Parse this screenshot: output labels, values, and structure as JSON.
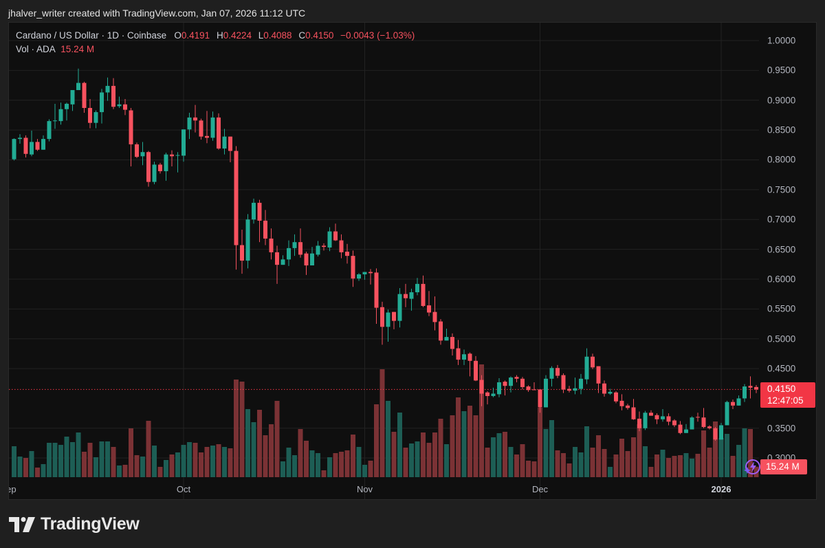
{
  "header": {
    "attribution": "jhalver_writer created with TradingView.com, Jan 07, 2026 11:12 UTC"
  },
  "legend": {
    "symbol": "Cardano / US Dollar · 1D · Coinbase",
    "o_key": "O",
    "o": "0.4191",
    "h_key": "H",
    "h": "0.4224",
    "l_key": "L",
    "l": "0.4088",
    "c_key": "C",
    "c": "0.4150",
    "change": "−0.0043 (−1.03%)",
    "vol_label": "Vol · ADA",
    "vol_value": "15.24 M"
  },
  "price_box": {
    "price": "0.4150",
    "countdown": "12:47:05"
  },
  "vol_box": {
    "value": "15.24 M"
  },
  "logo": {
    "text": "TradingView"
  },
  "colors": {
    "up": "#22ab94",
    "down": "#f7525f",
    "vol_up": "#1d5e55",
    "vol_down": "#7b3235",
    "grid": "#222222",
    "price_line": "#f23645"
  },
  "chart_data": {
    "type": "candlestick",
    "title": "Cardano / US Dollar · 1D · Coinbase",
    "interval": "1D",
    "first_date": "2025-09-02",
    "last_date": "2026-01-07",
    "ylim": [
      0.28,
      1.03
    ],
    "y_ticks": [
      "1.0000",
      "0.9500",
      "0.9000",
      "0.8500",
      "0.8000",
      "0.7500",
      "0.7000",
      "0.6500",
      "0.6000",
      "0.5500",
      "0.5000",
      "0.4500",
      "0.3500",
      "0.3000"
    ],
    "x_ticks": [
      {
        "label": "Sep",
        "at_index": -1,
        "bold": false
      },
      {
        "label": "Oct",
        "at_index": 29,
        "bold": false
      },
      {
        "label": "Nov",
        "at_index": 60,
        "bold": false
      },
      {
        "label": "Dec",
        "at_index": 90,
        "bold": false
      },
      {
        "label": "2026",
        "at_index": 121,
        "bold": true
      }
    ],
    "last_price": 0.415,
    "ohlc": [
      [
        0.801,
        0.836,
        0.799,
        0.835
      ],
      [
        0.835,
        0.843,
        0.827,
        0.837
      ],
      [
        0.837,
        0.841,
        0.804,
        0.81
      ],
      [
        0.809,
        0.849,
        0.806,
        0.83
      ],
      [
        0.83,
        0.835,
        0.815,
        0.817
      ],
      [
        0.817,
        0.841,
        0.817,
        0.835
      ],
      [
        0.835,
        0.868,
        0.831,
        0.865
      ],
      [
        0.865,
        0.894,
        0.852,
        0.866
      ],
      [
        0.865,
        0.896,
        0.859,
        0.885
      ],
      [
        0.885,
        0.896,
        0.866,
        0.894
      ],
      [
        0.893,
        0.917,
        0.882,
        0.917
      ],
      [
        0.917,
        0.953,
        0.917,
        0.929
      ],
      [
        0.929,
        0.931,
        0.879,
        0.887
      ],
      [
        0.887,
        0.902,
        0.853,
        0.862
      ],
      [
        0.862,
        0.883,
        0.853,
        0.88
      ],
      [
        0.88,
        0.919,
        0.861,
        0.913
      ],
      [
        0.913,
        0.938,
        0.899,
        0.924
      ],
      [
        0.924,
        0.937,
        0.885,
        0.889
      ],
      [
        0.89,
        0.906,
        0.887,
        0.893
      ],
      [
        0.893,
        0.902,
        0.875,
        0.884
      ],
      [
        0.883,
        0.887,
        0.789,
        0.826
      ],
      [
        0.826,
        0.829,
        0.803,
        0.805
      ],
      [
        0.806,
        0.83,
        0.791,
        0.813
      ],
      [
        0.813,
        0.815,
        0.755,
        0.763
      ],
      [
        0.763,
        0.797,
        0.759,
        0.792
      ],
      [
        0.792,
        0.795,
        0.777,
        0.781
      ],
      [
        0.781,
        0.812,
        0.765,
        0.809
      ],
      [
        0.809,
        0.816,
        0.789,
        0.806
      ],
      [
        0.807,
        0.813,
        0.779,
        0.808
      ],
      [
        0.807,
        0.851,
        0.797,
        0.851
      ],
      [
        0.851,
        0.879,
        0.835,
        0.871
      ],
      [
        0.871,
        0.892,
        0.846,
        0.866
      ],
      [
        0.866,
        0.869,
        0.834,
        0.839
      ],
      [
        0.84,
        0.882,
        0.828,
        0.837
      ],
      [
        0.837,
        0.881,
        0.832,
        0.871
      ],
      [
        0.871,
        0.878,
        0.817,
        0.819
      ],
      [
        0.819,
        0.852,
        0.809,
        0.839
      ],
      [
        0.839,
        0.839,
        0.796,
        0.815
      ],
      [
        0.815,
        0.823,
        0.616,
        0.657
      ],
      [
        0.657,
        0.683,
        0.609,
        0.631
      ],
      [
        0.631,
        0.709,
        0.618,
        0.7
      ],
      [
        0.7,
        0.735,
        0.693,
        0.728
      ],
      [
        0.728,
        0.733,
        0.662,
        0.698
      ],
      [
        0.698,
        0.716,
        0.657,
        0.668
      ],
      [
        0.668,
        0.685,
        0.633,
        0.645
      ],
      [
        0.645,
        0.656,
        0.592,
        0.624
      ],
      [
        0.624,
        0.64,
        0.624,
        0.633
      ],
      [
        0.633,
        0.665,
        0.622,
        0.652
      ],
      [
        0.652,
        0.675,
        0.639,
        0.662
      ],
      [
        0.662,
        0.685,
        0.636,
        0.641
      ],
      [
        0.643,
        0.646,
        0.607,
        0.623
      ],
      [
        0.623,
        0.654,
        0.623,
        0.643
      ],
      [
        0.641,
        0.664,
        0.638,
        0.656
      ],
      [
        0.656,
        0.66,
        0.648,
        0.654
      ],
      [
        0.653,
        0.687,
        0.647,
        0.68
      ],
      [
        0.68,
        0.693,
        0.664,
        0.665
      ],
      [
        0.665,
        0.675,
        0.635,
        0.645
      ],
      [
        0.646,
        0.659,
        0.626,
        0.639
      ],
      [
        0.639,
        0.648,
        0.587,
        0.601
      ],
      [
        0.601,
        0.61,
        0.597,
        0.608
      ],
      [
        0.608,
        0.612,
        0.599,
        0.612
      ],
      [
        0.612,
        0.617,
        0.591,
        0.61
      ],
      [
        0.611,
        0.618,
        0.525,
        0.552
      ],
      [
        0.553,
        0.562,
        0.49,
        0.52
      ],
      [
        0.52,
        0.549,
        0.495,
        0.544
      ],
      [
        0.545,
        0.545,
        0.516,
        0.53
      ],
      [
        0.53,
        0.585,
        0.519,
        0.575
      ],
      [
        0.575,
        0.592,
        0.553,
        0.568
      ],
      [
        0.567,
        0.584,
        0.547,
        0.578
      ],
      [
        0.578,
        0.602,
        0.573,
        0.592
      ],
      [
        0.592,
        0.606,
        0.553,
        0.555
      ],
      [
        0.556,
        0.58,
        0.538,
        0.544
      ],
      [
        0.545,
        0.571,
        0.514,
        0.528
      ],
      [
        0.529,
        0.533,
        0.49,
        0.497
      ],
      [
        0.497,
        0.517,
        0.497,
        0.503
      ],
      [
        0.503,
        0.509,
        0.472,
        0.483
      ],
      [
        0.484,
        0.498,
        0.456,
        0.465
      ],
      [
        0.465,
        0.482,
        0.456,
        0.474
      ],
      [
        0.475,
        0.477,
        0.437,
        0.463
      ],
      [
        0.463,
        0.471,
        0.429,
        0.43
      ],
      [
        0.431,
        0.439,
        0.387,
        0.408
      ],
      [
        0.41,
        0.412,
        0.39,
        0.404
      ],
      [
        0.404,
        0.418,
        0.402,
        0.408
      ],
      [
        0.407,
        0.434,
        0.402,
        0.427
      ],
      [
        0.428,
        0.43,
        0.405,
        0.421
      ],
      [
        0.421,
        0.437,
        0.41,
        0.435
      ],
      [
        0.436,
        0.439,
        0.427,
        0.433
      ],
      [
        0.433,
        0.436,
        0.415,
        0.419
      ],
      [
        0.42,
        0.422,
        0.411,
        0.414
      ],
      [
        0.415,
        0.427,
        0.414,
        0.414
      ],
      [
        0.415,
        0.415,
        0.376,
        0.385
      ],
      [
        0.385,
        0.439,
        0.385,
        0.433
      ],
      [
        0.433,
        0.454,
        0.42,
        0.451
      ],
      [
        0.451,
        0.456,
        0.434,
        0.438
      ],
      [
        0.439,
        0.442,
        0.409,
        0.415
      ],
      [
        0.416,
        0.421,
        0.41,
        0.413
      ],
      [
        0.413,
        0.435,
        0.407,
        0.417
      ],
      [
        0.416,
        0.441,
        0.407,
        0.433
      ],
      [
        0.432,
        0.484,
        0.424,
        0.47
      ],
      [
        0.47,
        0.475,
        0.449,
        0.452
      ],
      [
        0.454,
        0.454,
        0.409,
        0.425
      ],
      [
        0.425,
        0.43,
        0.403,
        0.408
      ],
      [
        0.408,
        0.416,
        0.406,
        0.411
      ],
      [
        0.41,
        0.412,
        0.392,
        0.395
      ],
      [
        0.396,
        0.407,
        0.38,
        0.387
      ],
      [
        0.388,
        0.391,
        0.381,
        0.384
      ],
      [
        0.385,
        0.399,
        0.364,
        0.365
      ],
      [
        0.366,
        0.378,
        0.345,
        0.35
      ],
      [
        0.35,
        0.379,
        0.347,
        0.376
      ],
      [
        0.376,
        0.38,
        0.371,
        0.371
      ],
      [
        0.372,
        0.375,
        0.357,
        0.365
      ],
      [
        0.365,
        0.382,
        0.361,
        0.37
      ],
      [
        0.37,
        0.375,
        0.355,
        0.361
      ],
      [
        0.363,
        0.365,
        0.352,
        0.355
      ],
      [
        0.356,
        0.362,
        0.34,
        0.342
      ],
      [
        0.342,
        0.357,
        0.342,
        0.348
      ],
      [
        0.348,
        0.37,
        0.348,
        0.368
      ],
      [
        0.369,
        0.376,
        0.361,
        0.368
      ],
      [
        0.368,
        0.384,
        0.35,
        0.352
      ],
      [
        0.353,
        0.355,
        0.348,
        0.35
      ],
      [
        0.35,
        0.352,
        0.329,
        0.331
      ],
      [
        0.331,
        0.359,
        0.331,
        0.355
      ],
      [
        0.355,
        0.396,
        0.355,
        0.394
      ],
      [
        0.394,
        0.398,
        0.382,
        0.388
      ],
      [
        0.388,
        0.405,
        0.388,
        0.4
      ],
      [
        0.4,
        0.424,
        0.394,
        0.42
      ],
      [
        0.421,
        0.437,
        0.4,
        0.418
      ],
      [
        0.4191,
        0.4224,
        0.4088,
        0.415
      ]
    ],
    "volume_unit": "M ADA (approx.)",
    "volume": [
      45,
      30,
      28,
      38,
      14,
      19,
      50,
      50,
      47,
      59,
      51,
      65,
      37,
      50,
      29,
      52,
      52,
      44,
      17,
      18,
      71,
      32,
      30,
      82,
      46,
      15,
      25,
      33,
      36,
      47,
      51,
      50,
      36,
      44,
      46,
      48,
      44,
      42,
      142,
      139,
      99,
      80,
      98,
      61,
      77,
      111,
      23,
      43,
      32,
      70,
      53,
      39,
      35,
      10,
      29,
      35,
      37,
      39,
      62,
      44,
      18,
      24,
      106,
      157,
      111,
      66,
      94,
      43,
      49,
      52,
      65,
      50,
      65,
      85,
      48,
      90,
      116,
      96,
      104,
      90,
      164,
      43,
      58,
      64,
      66,
      44,
      33,
      48,
      24,
      23,
      101,
      70,
      83,
      39,
      35,
      20,
      44,
      36,
      74,
      43,
      61,
      41,
      15,
      33,
      56,
      38,
      58,
      77,
      45,
      15,
      33,
      40,
      28,
      31,
      32,
      35,
      27,
      34,
      68,
      43,
      81,
      57,
      63,
      31,
      47,
      71,
      70,
      15.24
    ]
  }
}
